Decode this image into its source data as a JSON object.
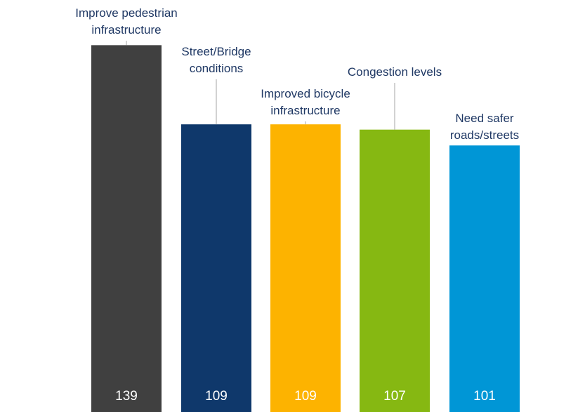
{
  "chart_data": {
    "type": "bar",
    "categories": [
      [
        "Improve pedestrian",
        "infrastructure"
      ],
      [
        "Street/Bridge",
        "conditions"
      ],
      [
        "Improved bicycle",
        "infrastructure"
      ],
      [
        "Congestion levels"
      ],
      [
        "Need safer",
        "roads/streets"
      ]
    ],
    "values": [
      139,
      109,
      109,
      107,
      101
    ],
    "colors": [
      "#404040",
      "#0f386b",
      "#fdb300",
      "#86b812",
      "#0096d6"
    ],
    "ylim": [
      0,
      150
    ]
  }
}
